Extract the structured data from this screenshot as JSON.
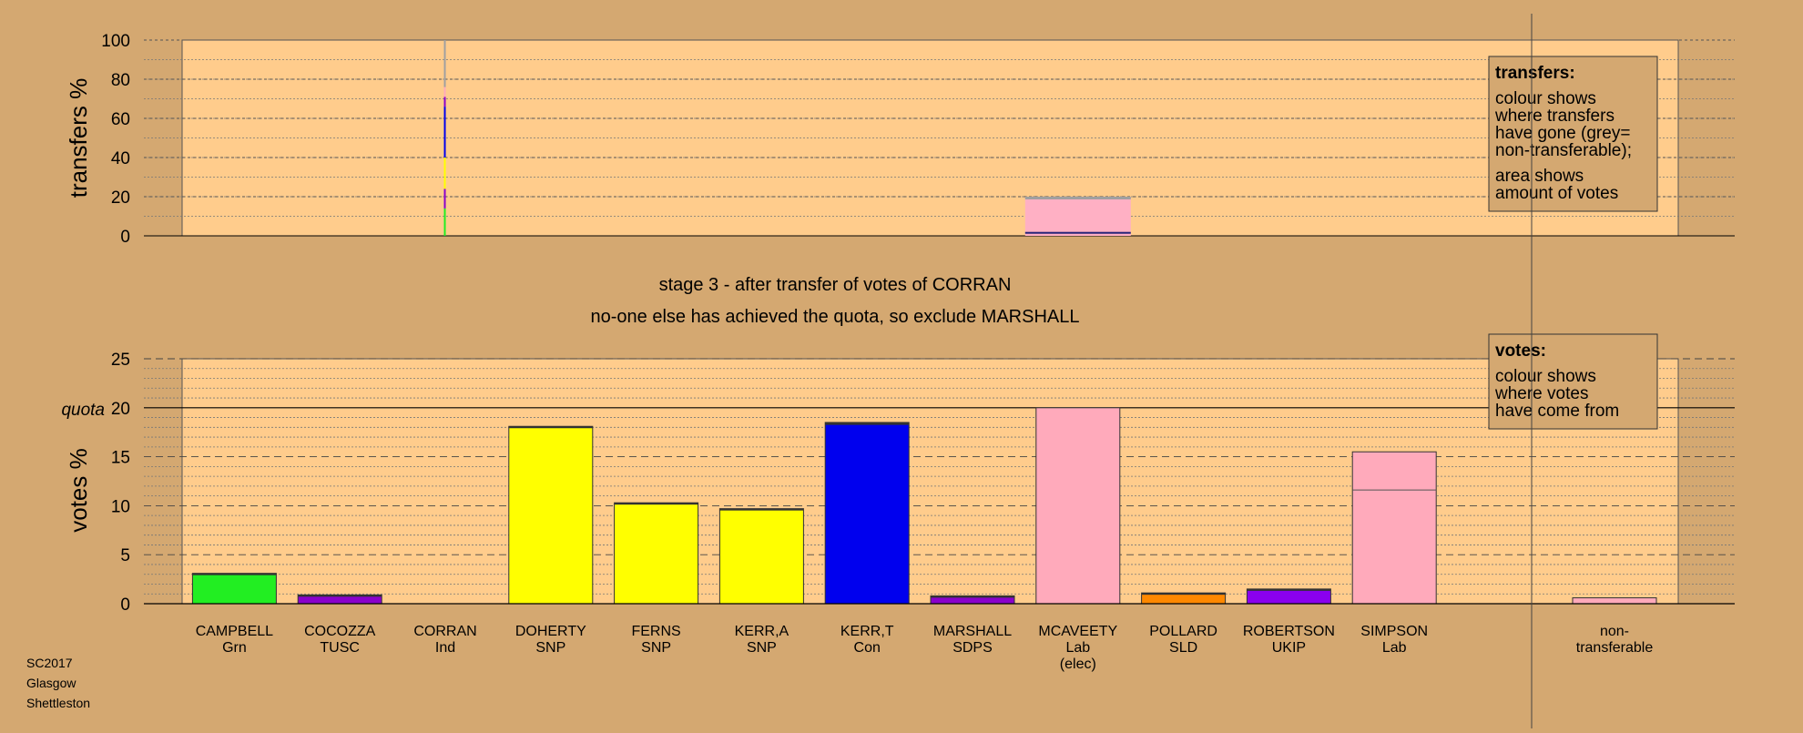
{
  "chart_data": [
    {
      "type": "bar",
      "panel": "transfers",
      "ylabel": "transfers %",
      "ylim": [
        0,
        100
      ],
      "yticks": [
        "0",
        "20",
        "40",
        "60",
        "80",
        "100"
      ],
      "grid": true,
      "transfers_from": "CORRAN",
      "segments": [
        {
          "recipient": "CAMPBELL",
          "color": "#22ee22",
          "value": 14
        },
        {
          "recipient": "COCOZZA",
          "color": "#8a00cc",
          "value": 10
        },
        {
          "recipient": "DOHERTY",
          "color": "#ffff00",
          "value": 16
        },
        {
          "recipient": "KERR,T",
          "color": "#0000ee",
          "value": 26
        },
        {
          "recipient": "MARSHALL",
          "color": "#8a00cc",
          "value": 5
        },
        {
          "recipient": "MCAVEETY",
          "color": "#ffaabb",
          "value": 5
        },
        {
          "recipient": "non-transferable",
          "color": "#a0a0a0",
          "value": 24
        }
      ],
      "width_pct": 0.3
    },
    {
      "type": "bar",
      "panel": "votes",
      "ylabel": "votes %",
      "ylim": [
        0,
        25
      ],
      "yticks": [
        "0",
        "5",
        "10",
        "15",
        "20",
        "25"
      ],
      "quota": 20,
      "quota_label": "quota",
      "grid": true,
      "categories": [
        {
          "name": "CAMPBELL",
          "party": "Grn",
          "note": "",
          "color": "#22ee22",
          "value": 3.1,
          "transfer": 0.1,
          "base": null
        },
        {
          "name": "COCOZZA",
          "party": "TUSC",
          "note": "",
          "color": "#8a00cc",
          "value": 0.9,
          "transfer": 0.05,
          "base": null
        },
        {
          "name": "CORRAN",
          "party": "Ind",
          "note": "",
          "color": "#a0a0a0",
          "value": 0,
          "transfer": 0,
          "base": null
        },
        {
          "name": "DOHERTY",
          "party": "SNP",
          "note": "",
          "color": "#ffff00",
          "value": 18.1,
          "transfer": 0.15,
          "base": null
        },
        {
          "name": "FERNS",
          "party": "SNP",
          "note": "",
          "color": "#ffff00",
          "value": 10.3,
          "transfer": 0.1,
          "base": null
        },
        {
          "name": "KERR,A",
          "party": "SNP",
          "note": "",
          "color": "#ffff00",
          "value": 9.7,
          "transfer": 0.1,
          "base": null
        },
        {
          "name": "KERR,T",
          "party": "Con",
          "note": "",
          "color": "#0000ee",
          "value": 18.5,
          "transfer": 0.25,
          "base": null
        },
        {
          "name": "MARSHALL",
          "party": "SDPS",
          "note": "",
          "color": "#8a00cc",
          "value": 0.8,
          "transfer": 0.05,
          "base": null
        },
        {
          "name": "MCAVEETY",
          "party": "Lab",
          "note": "(elec)",
          "color": "#ffaabb",
          "value": 20.0,
          "transfer": 0,
          "base": null
        },
        {
          "name": "POLLARD",
          "party": "SLD",
          "note": "",
          "color": "#ff8800",
          "value": 1.1,
          "transfer": 0.05,
          "base": null
        },
        {
          "name": "ROBERTSON",
          "party": "UKIP",
          "note": "",
          "color": "#8a00ee",
          "value": 1.5,
          "transfer": 0.05,
          "base": null
        },
        {
          "name": "SIMPSON",
          "party": "Lab",
          "note": "",
          "color": "#ffaabb",
          "value": 15.5,
          "transfer": 0,
          "base": 11.6
        },
        {
          "name": "non-",
          "party": "transferable",
          "note": "",
          "color": "#ffaabb",
          "value": 0.6,
          "transfer": 0,
          "base": null
        }
      ]
    }
  ],
  "stage_title": "stage 3 - after transfer of votes of CORRAN",
  "stage_subtitle": "no-one else has achieved the quota, so exclude MARSHALL",
  "legend_transfers": {
    "title": "transfers:",
    "lines1": [
      "colour shows",
      "where transfers",
      "have gone (grey=",
      "non-transferable);"
    ],
    "lines2": [
      "area shows",
      "amount of votes"
    ]
  },
  "legend_votes": {
    "title": "votes:",
    "lines": [
      "colour shows",
      "where votes",
      "have come from"
    ]
  },
  "footer": [
    "SC2017",
    "Glasgow",
    "Shettleston"
  ],
  "colors": {
    "background": "#d4a871",
    "plot": "#ffcc8c"
  }
}
